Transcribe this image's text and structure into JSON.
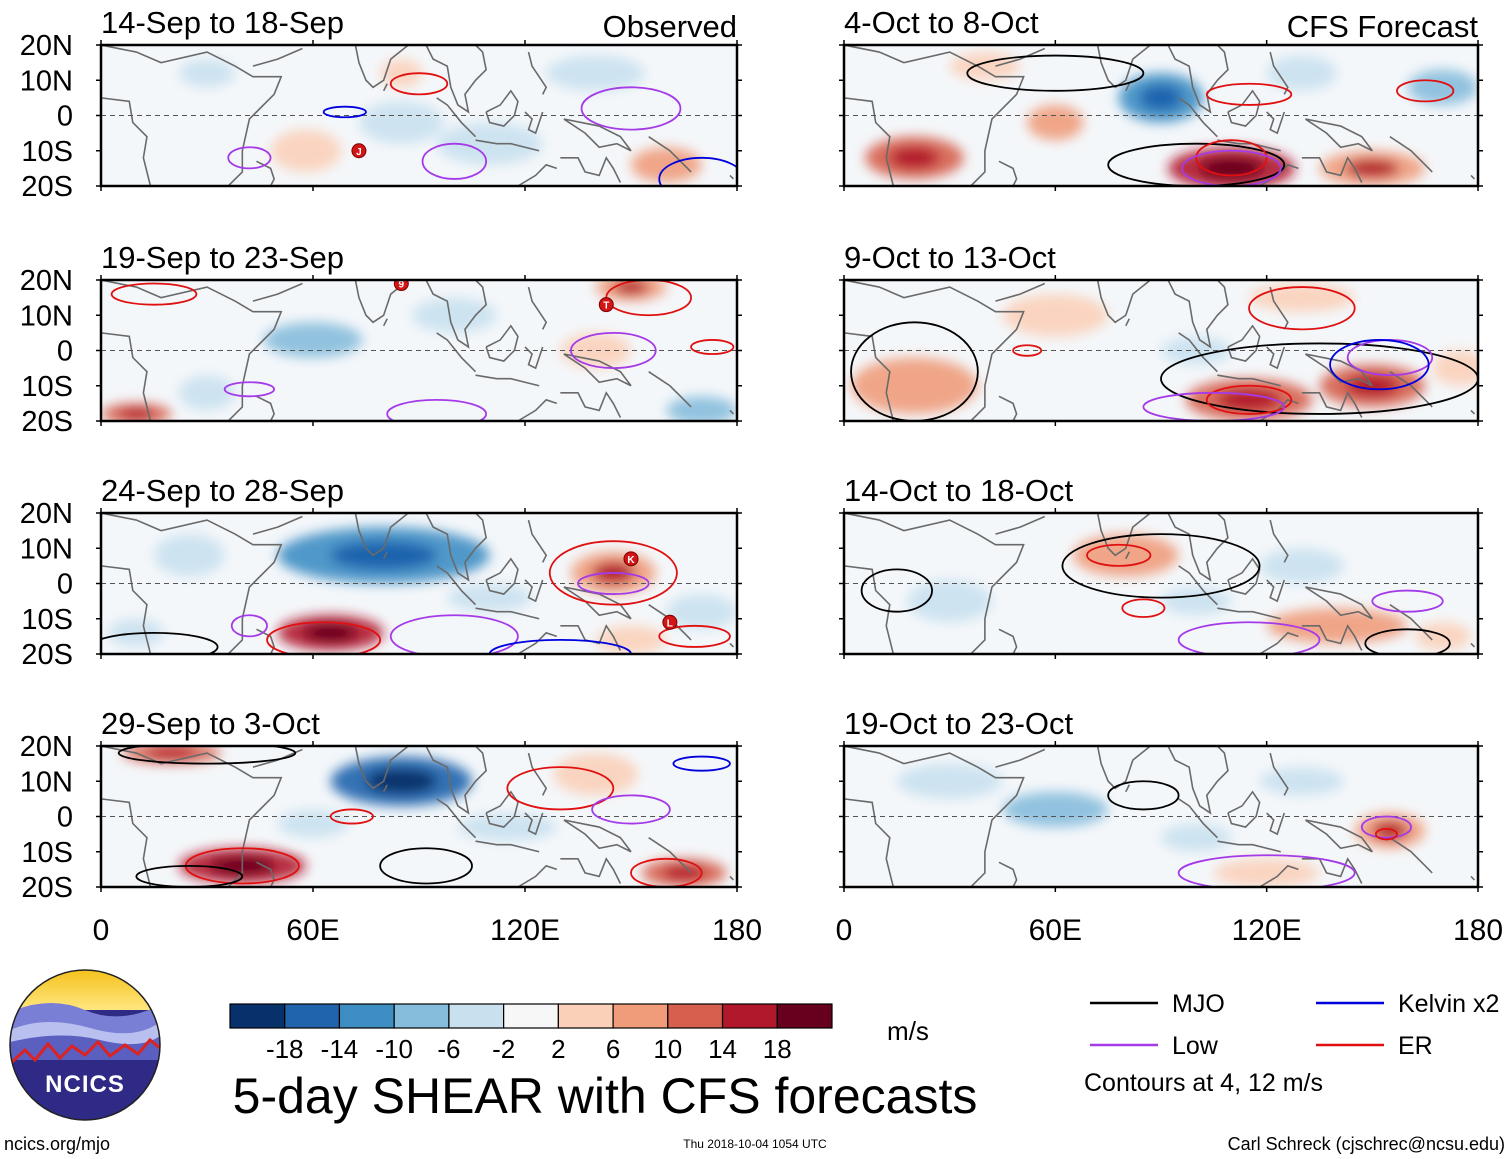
{
  "title": "5-day SHEAR with CFS forecasts",
  "header": {
    "observed_label": "Observed",
    "forecast_label": "CFS Forecast"
  },
  "chart_data": {
    "type": "heatmap",
    "title": "5-day SHEAR with CFS forecasts",
    "variable": "Vertical wind shear anomaly",
    "units": "m/s",
    "lat_ticks": [
      "20N",
      "10N",
      "0",
      "10S",
      "20S"
    ],
    "lon_ticks": [
      "0",
      "60E",
      "120E",
      "180"
    ],
    "lat_range": [
      -20,
      20
    ],
    "lon_range": [
      0,
      180
    ],
    "colorbar": {
      "labels": [
        "-18",
        "-14",
        "-10",
        "-6",
        "-2",
        "2",
        "6",
        "10",
        "14",
        "18"
      ],
      "colors": [
        "#08306b",
        "#1f64ad",
        "#3e8ec4",
        "#86bcdc",
        "#c9e1ef",
        "#f7f7f7",
        "#fbd0b9",
        "#f09c7b",
        "#d6604d",
        "#b2182b",
        "#67001f"
      ]
    },
    "legend": {
      "series": [
        {
          "name": "MJO",
          "color": "#000000"
        },
        {
          "name": "Kelvin x2",
          "color": "#0000dd"
        },
        {
          "name": "Low",
          "color": "#a43ae8"
        },
        {
          "name": "ER",
          "color": "#e01010"
        }
      ],
      "note": "Contours at 4, 12 m/s"
    },
    "panels": [
      {
        "label": "14-Sep to 18-Sep",
        "kind": "Observed",
        "storms": [
          "J"
        ],
        "blobs": [
          [
            30,
            12,
            8,
            4,
            -5
          ],
          [
            85,
            -2,
            12,
            6,
            -4
          ],
          [
            140,
            12,
            14,
            5,
            -5
          ],
          [
            58,
            -10,
            10,
            6,
            4
          ],
          [
            85,
            12,
            6,
            4,
            5
          ],
          [
            160,
            -14,
            10,
            5,
            7
          ],
          [
            110,
            -8,
            15,
            6,
            -3
          ]
        ],
        "contours": [
          {
            "c": "#a43ae8",
            "lon": 150,
            "lat": 2,
            "rx": 14,
            "ry": 6
          },
          {
            "c": "#a43ae8",
            "lon": 100,
            "lat": -13,
            "rx": 9,
            "ry": 5
          },
          {
            "c": "#a43ae8",
            "lon": 42,
            "lat": -12,
            "rx": 6,
            "ry": 3
          },
          {
            "c": "#e01010",
            "lon": 90,
            "lat": 9,
            "rx": 8,
            "ry": 3
          },
          {
            "c": "#0000dd",
            "lon": 69,
            "lat": 1,
            "rx": 6,
            "ry": 1.5
          },
          {
            "c": "#0000dd",
            "lon": 170,
            "lat": -18,
            "rx": 12,
            "ry": 6
          }
        ]
      },
      {
        "label": "4-Oct to 8-Oct",
        "kind": "Forecast",
        "storms": [],
        "blobs": [
          [
            90,
            5,
            12,
            7,
            -10
          ],
          [
            110,
            -15,
            18,
            6,
            15
          ],
          [
            20,
            -12,
            14,
            6,
            12
          ],
          [
            150,
            -15,
            15,
            5,
            10
          ],
          [
            60,
            -2,
            8,
            5,
            8
          ],
          [
            170,
            8,
            10,
            5,
            -6
          ],
          [
            40,
            14,
            10,
            4,
            6
          ],
          [
            130,
            12,
            10,
            5,
            -5
          ]
        ],
        "contours": [
          {
            "c": "#000000",
            "lon": 100,
            "lat": -14,
            "rx": 25,
            "ry": 6
          },
          {
            "c": "#000000",
            "lon": 60,
            "lat": 12,
            "rx": 25,
            "ry": 5
          },
          {
            "c": "#e01010",
            "lon": 110,
            "lat": -12,
            "rx": 10,
            "ry": 5
          },
          {
            "c": "#a43ae8",
            "lon": 110,
            "lat": -15,
            "rx": 14,
            "ry": 5
          },
          {
            "c": "#e01010",
            "lon": 165,
            "lat": 7,
            "rx": 8,
            "ry": 3
          },
          {
            "c": "#e01010",
            "lon": 115,
            "lat": 6,
            "rx": 12,
            "ry": 3
          }
        ]
      },
      {
        "label": "19-Sep to 23-Sep",
        "kind": "Observed",
        "storms": [
          "9",
          "T"
        ],
        "blobs": [
          [
            60,
            3,
            14,
            5,
            -6
          ],
          [
            100,
            10,
            12,
            5,
            -4
          ],
          [
            150,
            18,
            10,
            4,
            10
          ],
          [
            10,
            -18,
            10,
            3,
            12
          ],
          [
            170,
            -17,
            10,
            4,
            -6
          ],
          [
            30,
            -12,
            8,
            5,
            -3
          ],
          [
            140,
            0,
            10,
            5,
            5
          ]
        ],
        "contours": [
          {
            "c": "#e01010",
            "lon": 155,
            "lat": 15,
            "rx": 12,
            "ry": 5
          },
          {
            "c": "#a43ae8",
            "lon": 145,
            "lat": 0,
            "rx": 12,
            "ry": 5
          },
          {
            "c": "#e01010",
            "lon": 173,
            "lat": 1,
            "rx": 6,
            "ry": 2
          },
          {
            "c": "#a43ae8",
            "lon": 42,
            "lat": -11,
            "rx": 7,
            "ry": 2
          },
          {
            "c": "#a43ae8",
            "lon": 95,
            "lat": -18,
            "rx": 14,
            "ry": 4
          },
          {
            "c": "#e01010",
            "lon": 15,
            "lat": 16,
            "rx": 12,
            "ry": 3
          }
        ]
      },
      {
        "label": "9-Oct to 13-Oct",
        "kind": "Forecast",
        "storms": [],
        "blobs": [
          [
            115,
            -14,
            18,
            6,
            12
          ],
          [
            20,
            -10,
            18,
            8,
            8
          ],
          [
            150,
            -10,
            15,
            6,
            12
          ],
          [
            60,
            10,
            15,
            6,
            5
          ],
          [
            100,
            0,
            10,
            4,
            -5
          ],
          [
            130,
            15,
            15,
            4,
            6
          ],
          [
            175,
            -5,
            8,
            5,
            4
          ]
        ],
        "contours": [
          {
            "c": "#000000",
            "lon": 135,
            "lat": -8,
            "rx": 45,
            "ry": 10
          },
          {
            "c": "#000000",
            "lon": 20,
            "lat": -6,
            "rx": 18,
            "ry": 14
          },
          {
            "c": "#a43ae8",
            "lon": 155,
            "lat": -2,
            "rx": 12,
            "ry": 5
          },
          {
            "c": "#0000dd",
            "lon": 152,
            "lat": -4,
            "rx": 14,
            "ry": 7
          },
          {
            "c": "#e01010",
            "lon": 52,
            "lat": 0,
            "rx": 4,
            "ry": 1.5
          },
          {
            "c": "#e01010",
            "lon": 115,
            "lat": -14,
            "rx": 12,
            "ry": 4
          },
          {
            "c": "#a43ae8",
            "lon": 105,
            "lat": -16,
            "rx": 20,
            "ry": 4
          },
          {
            "c": "#e01010",
            "lon": 130,
            "lat": 12,
            "rx": 15,
            "ry": 6
          }
        ]
      },
      {
        "label": "24-Sep to 28-Sep",
        "kind": "Observed",
        "storms": [
          "K",
          "L"
        ],
        "blobs": [
          [
            80,
            8,
            30,
            8,
            -12
          ],
          [
            25,
            8,
            10,
            6,
            -4
          ],
          [
            65,
            -14,
            15,
            5,
            15
          ],
          [
            145,
            3,
            12,
            6,
            10
          ],
          [
            110,
            -4,
            12,
            4,
            -4
          ],
          [
            170,
            -8,
            10,
            5,
            -5
          ],
          [
            10,
            -14,
            8,
            4,
            -5
          ],
          [
            150,
            -16,
            10,
            4,
            5
          ]
        ],
        "contours": [
          {
            "c": "#e01010",
            "lon": 145,
            "lat": 3,
            "rx": 18,
            "ry": 9
          },
          {
            "c": "#e01010",
            "lon": 63,
            "lat": -16,
            "rx": 16,
            "ry": 5
          },
          {
            "c": "#a43ae8",
            "lon": 100,
            "lat": -15,
            "rx": 18,
            "ry": 6
          },
          {
            "c": "#a43ae8",
            "lon": 145,
            "lat": 0,
            "rx": 10,
            "ry": 3
          },
          {
            "c": "#a43ae8",
            "lon": 42,
            "lat": -12,
            "rx": 5,
            "ry": 3
          },
          {
            "c": "#0000dd",
            "lon": 130,
            "lat": -20,
            "rx": 20,
            "ry": 4
          },
          {
            "c": "#000000",
            "lon": 15,
            "lat": -18,
            "rx": 18,
            "ry": 4
          },
          {
            "c": "#e01010",
            "lon": 168,
            "lat": -15,
            "rx": 10,
            "ry": 3
          }
        ]
      },
      {
        "label": "14-Oct to 18-Oct",
        "kind": "Forecast",
        "storms": [],
        "blobs": [
          [
            80,
            8,
            15,
            6,
            8
          ],
          [
            140,
            -12,
            20,
            5,
            8
          ],
          [
            100,
            -5,
            10,
            4,
            -3
          ],
          [
            30,
            -5,
            12,
            6,
            -3
          ],
          [
            130,
            5,
            12,
            5,
            -4
          ],
          [
            170,
            -15,
            8,
            4,
            5
          ]
        ],
        "contours": [
          {
            "c": "#000000",
            "lon": 90,
            "lat": 5,
            "rx": 28,
            "ry": 9
          },
          {
            "c": "#e01010",
            "lon": 78,
            "lat": 8,
            "rx": 9,
            "ry": 3
          },
          {
            "c": "#e01010",
            "lon": 85,
            "lat": -7,
            "rx": 6,
            "ry": 2.5
          },
          {
            "c": "#a43ae8",
            "lon": 115,
            "lat": -16,
            "rx": 20,
            "ry": 5
          },
          {
            "c": "#a43ae8",
            "lon": 160,
            "lat": -5,
            "rx": 10,
            "ry": 3
          },
          {
            "c": "#000000",
            "lon": 160,
            "lat": -17,
            "rx": 12,
            "ry": 4
          },
          {
            "c": "#000000",
            "lon": 15,
            "lat": -2,
            "rx": 10,
            "ry": 6
          }
        ]
      },
      {
        "label": "29-Sep to 3-Oct",
        "kind": "Observed",
        "storms": [],
        "blobs": [
          [
            85,
            10,
            20,
            7,
            -14
          ],
          [
            40,
            -14,
            18,
            5,
            15
          ],
          [
            165,
            -16,
            12,
            4,
            12
          ],
          [
            140,
            12,
            12,
            6,
            6
          ],
          [
            115,
            -3,
            14,
            4,
            -3
          ],
          [
            20,
            18,
            14,
            3,
            12
          ],
          [
            60,
            -2,
            10,
            4,
            -4
          ]
        ],
        "contours": [
          {
            "c": "#e01010",
            "lon": 40,
            "lat": -14,
            "rx": 16,
            "ry": 5
          },
          {
            "c": "#e01010",
            "lon": 130,
            "lat": 8,
            "rx": 15,
            "ry": 6
          },
          {
            "c": "#a43ae8",
            "lon": 150,
            "lat": 2,
            "rx": 11,
            "ry": 4
          },
          {
            "c": "#e01010",
            "lon": 71,
            "lat": 0,
            "rx": 6,
            "ry": 2
          },
          {
            "c": "#000000",
            "lon": 92,
            "lat": -14,
            "rx": 13,
            "ry": 5
          },
          {
            "c": "#000000",
            "lon": 25,
            "lat": -17,
            "rx": 15,
            "ry": 3
          },
          {
            "c": "#000000",
            "lon": 30,
            "lat": 18,
            "rx": 25,
            "ry": 3
          },
          {
            "c": "#0000dd",
            "lon": 170,
            "lat": 15,
            "rx": 8,
            "ry": 2
          },
          {
            "c": "#e01010",
            "lon": 160,
            "lat": -16,
            "rx": 10,
            "ry": 4
          }
        ]
      },
      {
        "label": "19-Oct to 23-Oct",
        "kind": "Forecast",
        "storms": [],
        "blobs": [
          [
            60,
            2,
            15,
            5,
            -6
          ],
          [
            155,
            -4,
            10,
            5,
            10
          ],
          [
            100,
            -6,
            10,
            4,
            -3
          ],
          [
            130,
            10,
            12,
            4,
            -3
          ],
          [
            30,
            10,
            15,
            5,
            -2
          ],
          [
            120,
            -16,
            15,
            4,
            4
          ]
        ],
        "contours": [
          {
            "c": "#000000",
            "lon": 85,
            "lat": 6,
            "rx": 10,
            "ry": 4
          },
          {
            "c": "#a43ae8",
            "lon": 154,
            "lat": -3,
            "rx": 7,
            "ry": 3
          },
          {
            "c": "#e01010",
            "lon": 154,
            "lat": -5,
            "rx": 3,
            "ry": 1.5
          },
          {
            "c": "#a43ae8",
            "lon": 120,
            "lat": -16,
            "rx": 25,
            "ry": 5
          }
        ]
      }
    ]
  },
  "footer": {
    "url": "ncics.org/mjo",
    "timestamp": "Thu 2018-10-04 1054 UTC",
    "author": "Carl Schreck (cjschrec@ncsu.edu)"
  },
  "logo": {
    "text": "NCICS"
  }
}
